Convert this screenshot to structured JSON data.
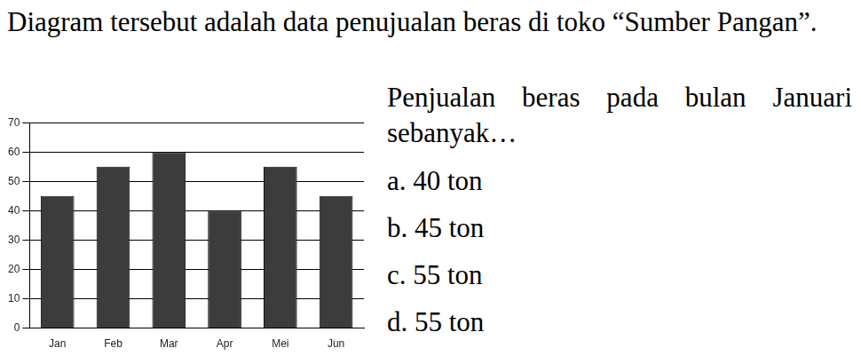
{
  "document": {
    "intro": "Diagram tersebut adalah data penujualan beras di toko “Sumber Pangan”.",
    "question": "Penjualan beras pada bulan Januari sebanyak…",
    "options": [
      "a. 40 ton",
      "b. 45 ton",
      "c. 55 ton",
      "d. 55 ton"
    ]
  },
  "chart_data": {
    "type": "bar",
    "categories": [
      "Jan",
      "Feb",
      "Mar",
      "Apr",
      "Mei",
      "Jun"
    ],
    "values": [
      45,
      55,
      60,
      40,
      55,
      45
    ],
    "color": "#3c3c3c",
    "ylim": [
      0,
      70
    ],
    "yticks": [
      0,
      10,
      20,
      30,
      40,
      50,
      60,
      70
    ],
    "grid": true
  }
}
